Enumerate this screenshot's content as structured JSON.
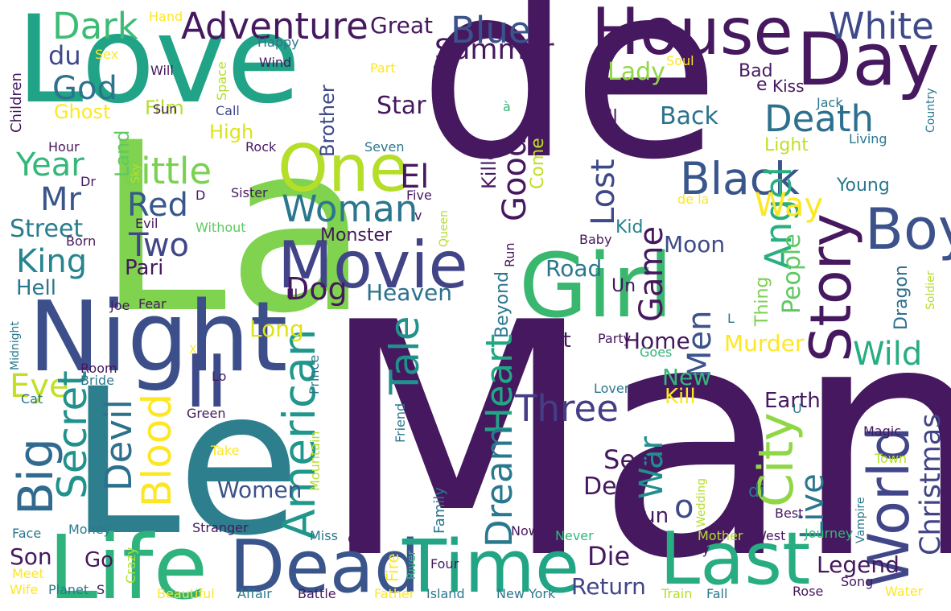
{
  "words": [
    {
      "text": "de",
      "color": "#46185f"
    },
    {
      "text": "Man",
      "color": "#46185f"
    },
    {
      "text": "La",
      "color": "#7fd34e"
    },
    {
      "text": "Le",
      "color": "#2d7f8d"
    },
    {
      "text": "Love",
      "color": "#20a386"
    },
    {
      "text": "Night",
      "color": "#3c4f8a"
    },
    {
      "text": "Girl",
      "color": "#3ab76f"
    },
    {
      "text": "Life",
      "color": "#2eb37c"
    },
    {
      "text": "Dead",
      "color": "#3a548c"
    },
    {
      "text": "Time",
      "color": "#21a585"
    },
    {
      "text": "Last",
      "color": "#27ad81"
    },
    {
      "text": "Day",
      "color": "#46185f"
    },
    {
      "text": "House",
      "color": "#46185f"
    },
    {
      "text": "Story",
      "color": "#46185f"
    },
    {
      "text": "World",
      "color": "#404688"
    },
    {
      "text": "Boy",
      "color": "#3b528b"
    },
    {
      "text": "One",
      "color": "#b5de2b"
    },
    {
      "text": "Movie",
      "color": "#414487"
    },
    {
      "text": "Black",
      "color": "#39568c"
    },
    {
      "text": "Adventure",
      "color": "#46185f"
    },
    {
      "text": "Dark",
      "color": "#3dbc74"
    },
    {
      "text": "Blue",
      "color": "#3b528b"
    },
    {
      "text": "White",
      "color": "#3e4989"
    },
    {
      "text": "Death",
      "color": "#2d708e"
    },
    {
      "text": "II",
      "color": "#3e4989"
    },
    {
      "text": "Woman",
      "color": "#2a768e"
    },
    {
      "text": "Little",
      "color": "#7ad151"
    },
    {
      "text": "God",
      "color": "#2c738e"
    },
    {
      "text": "Year",
      "color": "#35b779"
    },
    {
      "text": "Mr",
      "color": "#39558c"
    },
    {
      "text": "Red",
      "color": "#38588c"
    },
    {
      "text": "Two",
      "color": "#3f4788"
    },
    {
      "text": "King",
      "color": "#25848e"
    },
    {
      "text": "Street",
      "color": "#287d8e"
    },
    {
      "text": "Big",
      "color": "#306a8e"
    },
    {
      "text": "Eye",
      "color": "#c2df23"
    },
    {
      "text": "Secret",
      "color": "#21918c"
    },
    {
      "text": "Devil",
      "color": "#2d708e"
    },
    {
      "text": "Blood",
      "color": "#fde725"
    },
    {
      "text": "American",
      "color": "#1f978b"
    },
    {
      "text": "Tale",
      "color": "#21918c"
    },
    {
      "text": "Heart",
      "color": "#22a785"
    },
    {
      "text": "Three",
      "color": "#433e85"
    },
    {
      "text": "Dream",
      "color": "#2a788e"
    },
    {
      "text": "Good",
      "color": "#46185f"
    },
    {
      "text": "Lost",
      "color": "#3e4989"
    },
    {
      "text": "El",
      "color": "#46185f"
    },
    {
      "text": "Angel",
      "color": "#29af7f"
    },
    {
      "text": "Way",
      "color": "#fde725"
    },
    {
      "text": "City",
      "color": "#8fd744"
    },
    {
      "text": "Live",
      "color": "#2a788e"
    },
    {
      "text": "Wild",
      "color": "#26ad81"
    },
    {
      "text": "Christmas",
      "color": "#414487"
    },
    {
      "text": "Men",
      "color": "#3b528b"
    },
    {
      "text": "Game",
      "color": "#46185f"
    },
    {
      "text": "Home",
      "color": "#46185f"
    },
    {
      "text": "War",
      "color": "#21908d"
    },
    {
      "text": "Sea",
      "color": "#46185f"
    },
    {
      "text": "Die",
      "color": "#46185f"
    },
    {
      "text": "Return",
      "color": "#414487"
    },
    {
      "text": "Legend",
      "color": "#46185f"
    },
    {
      "text": "Summer",
      "color": "#46185f"
    },
    {
      "text": "Great",
      "color": "#46185f"
    },
    {
      "text": "Star",
      "color": "#46185f"
    },
    {
      "text": "Back",
      "color": "#2c728e"
    },
    {
      "text": "Lady",
      "color": "#8fd744"
    },
    {
      "text": "Moon",
      "color": "#3e4989"
    },
    {
      "text": "Road",
      "color": "#2a788e"
    },
    {
      "text": "Dog",
      "color": "#46185f"
    },
    {
      "text": "Long",
      "color": "#dde318"
    },
    {
      "text": "Heaven",
      "color": "#2d708e"
    },
    {
      "text": "New",
      "color": "#35b779"
    },
    {
      "text": "Kill",
      "color": "#fde725"
    },
    {
      "text": "Earth",
      "color": "#46185f"
    },
    {
      "text": "People",
      "color": "#5ec962"
    },
    {
      "text": "Murder",
      "color": "#fde725"
    },
    {
      "text": "First",
      "color": "#46185f"
    },
    {
      "text": "Women",
      "color": "#3b528b"
    },
    {
      "text": "Der",
      "color": "#46185f"
    },
    {
      "text": "Gun",
      "color": "#46185f"
    },
    {
      "text": "Son",
      "color": "#46185f"
    },
    {
      "text": "Go",
      "color": "#46185f"
    },
    {
      "text": "du",
      "color": "#3e4989"
    },
    {
      "text": "Film",
      "color": "#b5de2b"
    },
    {
      "text": "Ghost",
      "color": "#fde725"
    },
    {
      "text": "High",
      "color": "#dde318"
    },
    {
      "text": "Land",
      "color": "#5ec962"
    },
    {
      "text": "Brother",
      "color": "#3e4989"
    },
    {
      "text": "Killer",
      "color": "#46185f"
    },
    {
      "text": "Come",
      "color": "#c2df23"
    },
    {
      "text": "Hell",
      "color": "#2a788e"
    },
    {
      "text": "Pari",
      "color": "#46185f"
    },
    {
      "text": "Monster",
      "color": "#46185f"
    },
    {
      "text": "Beyond",
      "color": "#2a788e"
    },
    {
      "text": "Un",
      "color": "#46185f"
    },
    {
      "text": "Thing",
      "color": "#7ad151"
    },
    {
      "text": "Dragon",
      "color": "#2e6f8e"
    },
    {
      "text": "Young",
      "color": "#2a788e"
    },
    {
      "text": "Light",
      "color": "#c2df23"
    },
    {
      "text": "Kid",
      "color": "#26828e"
    },
    {
      "text": "End",
      "color": "#46185f"
    },
    {
      "text": "Il",
      "color": "#46185f"
    },
    {
      "text": "Bad",
      "color": "#46185f"
    },
    {
      "text": "e",
      "color": "#46185f"
    },
    {
      "text": "Kiss",
      "color": "#46185f"
    },
    {
      "text": "Children",
      "color": "#46185f"
    },
    {
      "text": "Hand",
      "color": "#fde725"
    },
    {
      "text": "Sex",
      "color": "#fde725"
    },
    {
      "text": "Will",
      "color": "#46185f"
    },
    {
      "text": "Happy",
      "color": "#2a788e"
    },
    {
      "text": "Wind",
      "color": "#46185f"
    },
    {
      "text": "Part",
      "color": "#fde725"
    },
    {
      "text": "Old",
      "color": "#46185f"
    },
    {
      "text": "Soul",
      "color": "#fde725"
    },
    {
      "text": "Space",
      "color": "#b5de2b"
    },
    {
      "text": "Sun",
      "color": "#46185f"
    },
    {
      "text": "Call",
      "color": "#3e4989"
    },
    {
      "text": "Hour",
      "color": "#46185f"
    },
    {
      "text": "Rock",
      "color": "#46185f"
    },
    {
      "text": "Seven",
      "color": "#2a788e"
    },
    {
      "text": "Sky",
      "color": "#b5de2b"
    },
    {
      "text": "Dr",
      "color": "#46185f"
    },
    {
      "text": "D",
      "color": "#46185f"
    },
    {
      "text": "Sister",
      "color": "#46185f"
    },
    {
      "text": "Five",
      "color": "#46185f"
    },
    {
      "text": "Evil",
      "color": "#46185f"
    },
    {
      "text": "Without",
      "color": "#5ec962"
    },
    {
      "text": "v",
      "color": "#46185f"
    },
    {
      "text": "Queen",
      "color": "#b5de2b"
    },
    {
      "text": "Born",
      "color": "#46185f"
    },
    {
      "text": "III",
      "color": "#46185f"
    },
    {
      "text": "Run",
      "color": "#46185f"
    },
    {
      "text": "Baby",
      "color": "#46185f"
    },
    {
      "text": "Soldier",
      "color": "#b5de2b"
    },
    {
      "text": "Country",
      "color": "#2a788e"
    },
    {
      "text": "Jack",
      "color": "#2a788e"
    },
    {
      "text": "Living",
      "color": "#2a788e"
    },
    {
      "text": "à",
      "color": "#35b779"
    },
    {
      "text": "de la",
      "color": "#fde725"
    },
    {
      "text": "Midnight",
      "color": "#2a788e"
    },
    {
      "text": "Joe",
      "color": "#46185f"
    },
    {
      "text": "Fear",
      "color": "#46185f"
    },
    {
      "text": "X",
      "color": "#fde725"
    },
    {
      "text": "Prince",
      "color": "#2a788e"
    },
    {
      "text": "Goes",
      "color": "#35b779"
    },
    {
      "text": "Party",
      "color": "#46185f"
    },
    {
      "text": "L",
      "color": "#2a788e"
    },
    {
      "text": "Room",
      "color": "#46185f"
    },
    {
      "text": "Bride",
      "color": "#2a788e"
    },
    {
      "text": "Lo",
      "color": "#46185f"
    },
    {
      "text": "Cat",
      "color": "#2a788e"
    },
    {
      "text": "Green",
      "color": "#46185f"
    },
    {
      "text": "Mountain",
      "color": "#b5de2b"
    },
    {
      "text": "Friend",
      "color": "#2a788e"
    },
    {
      "text": "Lover",
      "color": "#2a788e"
    },
    {
      "text": "U",
      "color": "#2a788e"
    },
    {
      "text": "Crime",
      "color": "#46185f"
    },
    {
      "text": "et",
      "color": "#46185f"
    },
    {
      "text": "Magic",
      "color": "#46185f"
    },
    {
      "text": "Town",
      "color": "#b5de2b"
    },
    {
      "text": "Take",
      "color": "#fde725"
    },
    {
      "text": "Shadow",
      "color": "#46185f"
    },
    {
      "text": "Family",
      "color": "#2a788e"
    },
    {
      "text": "Wedding",
      "color": "#b5de2b"
    },
    {
      "text": "Vampire",
      "color": "#2a788e"
    },
    {
      "text": "Best",
      "color": "#46185f"
    },
    {
      "text": "di",
      "color": "#2a788e"
    },
    {
      "text": "Da",
      "color": "#46185f"
    },
    {
      "text": "Face",
      "color": "#2a788e"
    },
    {
      "text": "Money",
      "color": "#2a788e"
    },
    {
      "text": "Stranger",
      "color": "#46185f"
    },
    {
      "text": "Miss",
      "color": "#2a788e"
    },
    {
      "text": "en",
      "color": "#46185f"
    },
    {
      "text": "Now",
      "color": "#46185f"
    },
    {
      "text": "Never",
      "color": "#35b779"
    },
    {
      "text": "Mother",
      "color": "#b5de2b"
    },
    {
      "text": "West",
      "color": "#46185f"
    },
    {
      "text": "Journey",
      "color": "#35b779"
    },
    {
      "text": "Crazy",
      "color": "#b5de2b"
    },
    {
      "text": "Fire",
      "color": "#fde725"
    },
    {
      "text": "River",
      "color": "#35b779"
    },
    {
      "text": "Four",
      "color": "#46185f"
    },
    {
      "text": "Guy",
      "color": "#46185f"
    },
    {
      "text": "Song",
      "color": "#46185f"
    },
    {
      "text": "Meet",
      "color": "#fde725"
    },
    {
      "text": "Wife",
      "color": "#fde725"
    },
    {
      "text": "Planet",
      "color": "#2a788e"
    },
    {
      "text": "S",
      "color": "#46185f"
    },
    {
      "text": "Beautiful",
      "color": "#fde725"
    },
    {
      "text": "Affair",
      "color": "#2a788e"
    },
    {
      "text": "Battle",
      "color": "#46185f"
    },
    {
      "text": "Father",
      "color": "#fde725"
    },
    {
      "text": "Island",
      "color": "#2a788e"
    },
    {
      "text": "New York",
      "color": "#2a788e"
    },
    {
      "text": "Train",
      "color": "#b5de2b"
    },
    {
      "text": "Fall",
      "color": "#2a788e"
    },
    {
      "text": "Rose",
      "color": "#46185f"
    },
    {
      "text": "Water",
      "color": "#fde725"
    },
    {
      "text": "o",
      "color": "#3e4989"
    }
  ]
}
